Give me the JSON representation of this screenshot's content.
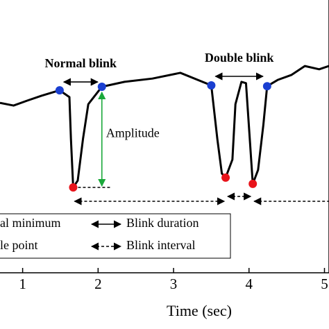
{
  "chart_data": {
    "type": "line",
    "x_label": "Time (sec)",
    "xlim": [
      0.7,
      5.06
    ],
    "xticks": [
      1,
      2,
      3,
      4,
      5
    ],
    "ylim": [
      0,
      100
    ],
    "series": [
      {
        "color": "#000000",
        "x": [
          0.7,
          0.88,
          1.06,
          1.25,
          1.49,
          1.62,
          1.64,
          1.67,
          1.73,
          1.8,
          1.87,
          2.05,
          2.35,
          2.72,
          3.09,
          3.5,
          3.58,
          3.64,
          3.69,
          3.78,
          3.82,
          3.9,
          3.96,
          4.01,
          4.05,
          4.12,
          4.19,
          4.24,
          4.38,
          4.56,
          4.74,
          4.93,
          5.06
        ],
        "values": [
          62.3,
          61.3,
          63.1,
          64.9,
          66.9,
          64.4,
          49.1,
          31.3,
          33.8,
          49.1,
          61.8,
          68.2,
          70.0,
          71.2,
          73.3,
          68.7,
          49.1,
          36.4,
          34.9,
          41.5,
          61.8,
          70.0,
          69.5,
          49.1,
          32.6,
          37.7,
          54.2,
          68.4,
          70.7,
          72.5,
          75.8,
          74.6,
          75.8
        ]
      }
    ],
    "markers": [
      {
        "color": "#1a3fd1",
        "x": [
          1.49,
          2.05,
          3.5,
          4.24
        ],
        "values": [
          66.9,
          68.2,
          68.7,
          68.4
        ]
      },
      {
        "color": "#e8131a",
        "x": [
          1.67,
          3.69,
          4.05
        ],
        "values": [
          31.3,
          34.9,
          32.6
        ]
      }
    ],
    "annotations": {
      "normal": "Normal blink",
      "double": "Double blink",
      "amplitude": "Amplitude",
      "amplitude_color": "#1aa83a"
    },
    "legend": [
      "al minimum",
      "le point",
      "Blink duration",
      "Blink interval"
    ]
  }
}
